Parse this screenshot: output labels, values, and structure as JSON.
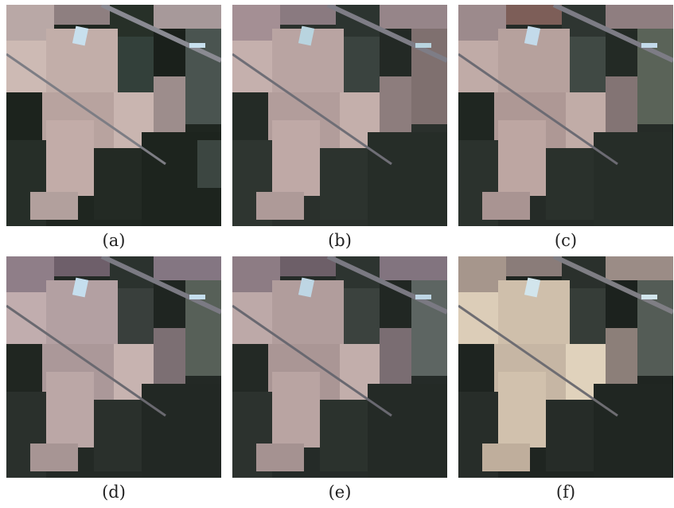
{
  "figure": {
    "panels": [
      {
        "id": "a",
        "caption": "(a)"
      },
      {
        "id": "b",
        "caption": "(b)"
      },
      {
        "id": "c",
        "caption": "(c)"
      },
      {
        "id": "d",
        "caption": "(d)"
      },
      {
        "id": "e",
        "caption": "(e)"
      },
      {
        "id": "f",
        "caption": "(f)"
      }
    ]
  },
  "colors": {
    "dark_field": "#1c231d",
    "dark_field_alt": "#2b3230",
    "light_field": "#c9b3ae",
    "light_field_alt": "#b29c99",
    "mid_field": "#6d6565",
    "bright_patch": "#c8e0ee",
    "road": "#8a8a92"
  }
}
